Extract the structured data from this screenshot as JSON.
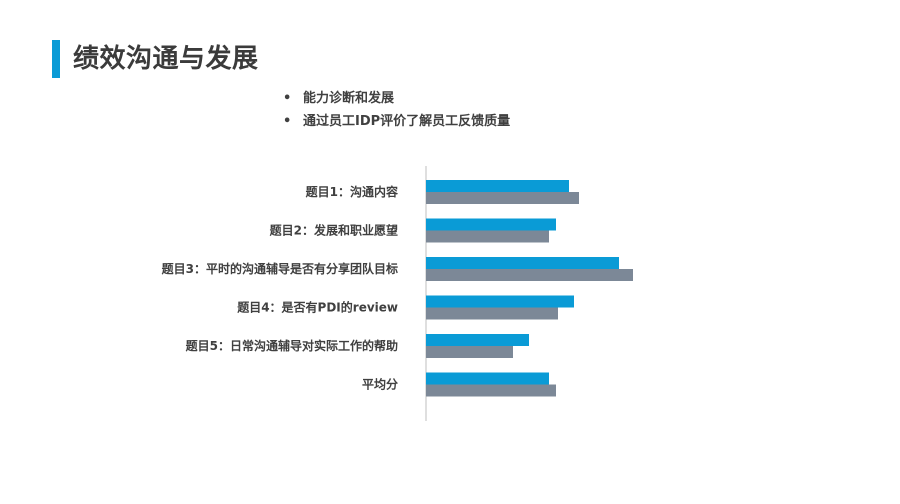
{
  "slide": {
    "title": "绩效沟通与发展",
    "bullets": [
      "能力诊断和发展",
      "通过员工IDP评价了解员工反馈质量"
    ],
    "bullet_symbol": "•"
  },
  "colors": {
    "accent": "#0a9bd6",
    "series_1": "#0a9bd6",
    "series_2": "#7c8897",
    "axis": "#bfbfbf",
    "text": "#404040"
  },
  "chart_data": {
    "type": "bar",
    "orientation": "horizontal",
    "categories": [
      "题目1：沟通内容",
      "题目2：发展和职业愿望",
      "题目3：平时的沟通辅导是否有分享团队目标",
      "题目4：是否有PDI的review",
      "题目5：日常沟通辅导对实际工作的帮助",
      "平均分"
    ],
    "series": [
      {
        "values": [
          143,
          130,
          193,
          148,
          103,
          123
        ]
      },
      {
        "values": [
          153,
          123,
          207,
          132,
          87,
          130
        ]
      }
    ],
    "xlim": [
      0,
      210
    ],
    "x_axis_labels_shown": false,
    "legend": "none",
    "grid": false
  }
}
